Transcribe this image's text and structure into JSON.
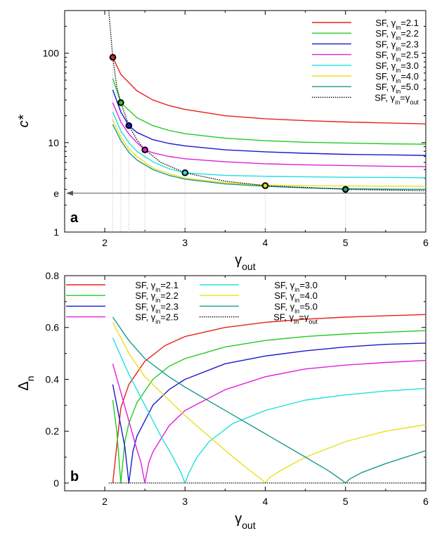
{
  "chart_data": [
    {
      "type": "line",
      "panel_label": "a",
      "xlabel": "γ",
      "xlabel_sub": "out",
      "ylabel": "c*",
      "xlim": [
        1.5,
        6
      ],
      "ylim": [
        1,
        300
      ],
      "y_scale": "log",
      "x_ticks": [
        2,
        3,
        4,
        5,
        6
      ],
      "x_tick_labels": [
        "2",
        "3",
        "4",
        "5",
        "6"
      ],
      "y_ticks": [
        1,
        10,
        100
      ],
      "y_tick_labels": [
        "1",
        "10",
        "100"
      ],
      "reference_line": {
        "label": "e",
        "y": 2.718
      },
      "legend_position": "top-right",
      "series": [
        {
          "name": "SF, γin=2.1",
          "name_base": "SF, γ",
          "name_sub": "in",
          "name_value": "=2.1",
          "color": "#e8201a",
          "x": [
            2.1,
            2.2,
            2.4,
            2.6,
            2.8,
            3.0,
            3.5,
            4.0,
            4.5,
            5.0,
            5.5,
            6.0
          ],
          "y": [
            90,
            58,
            38,
            30,
            26,
            23.5,
            20,
            18.5,
            17.6,
            17,
            16.6,
            16.2
          ]
        },
        {
          "name": "SF, γin=2.2",
          "name_base": "SF, γ",
          "name_sub": "in",
          "name_value": "=2.2",
          "color": "#22cc22",
          "x": [
            2.1,
            2.2,
            2.4,
            2.6,
            2.8,
            3.0,
            3.5,
            4.0,
            4.5,
            5.0,
            5.5,
            6.0
          ],
          "y": [
            52,
            28,
            19,
            15.5,
            13.7,
            12.6,
            11.2,
            10.5,
            10.1,
            9.9,
            9.7,
            9.6
          ]
        },
        {
          "name": "SF, γin=2.3",
          "name_base": "SF, γ",
          "name_sub": "in",
          "name_value": "=2.3",
          "color": "#1a1acc",
          "x": [
            2.1,
            2.2,
            2.3,
            2.4,
            2.6,
            2.8,
            3.0,
            3.5,
            4.0,
            4.5,
            5.0,
            5.5,
            6.0
          ],
          "y": [
            39,
            22,
            15.5,
            13,
            10.8,
            9.8,
            9.2,
            8.3,
            7.9,
            7.6,
            7.4,
            7.3,
            7.2
          ]
        },
        {
          "name": "SF, γin=2.5",
          "name_base": "SF, γ",
          "name_sub": "in",
          "name_value": "=2.5",
          "color": "#e020d8",
          "x": [
            2.1,
            2.2,
            2.3,
            2.4,
            2.5,
            2.6,
            2.8,
            3.0,
            3.5,
            4.0,
            4.5,
            5.0,
            5.5,
            6.0
          ],
          "y": [
            28,
            17,
            12.5,
            10,
            8.3,
            7.7,
            7.0,
            6.6,
            6.1,
            5.8,
            5.65,
            5.55,
            5.45,
            5.4
          ]
        },
        {
          "name": "SF, γin=3.0",
          "name_base": "SF, γ",
          "name_sub": "in",
          "name_value": "=3.0",
          "color": "#22e0e0",
          "x": [
            2.1,
            2.2,
            2.3,
            2.4,
            2.6,
            2.8,
            3.0,
            3.5,
            4.0,
            4.5,
            5.0,
            5.5,
            6.0
          ],
          "y": [
            22,
            13.5,
            10,
            8.0,
            6.1,
            5.1,
            4.6,
            4.3,
            4.2,
            4.15,
            4.1,
            4.08,
            4.05
          ]
        },
        {
          "name": "SF, γin=4.0",
          "name_base": "SF, γ",
          "name_sub": "in",
          "name_value": "=4.0",
          "color": "#e8e020",
          "x": [
            2.1,
            2.2,
            2.3,
            2.4,
            2.6,
            2.8,
            3.0,
            3.5,
            4.0,
            4.5,
            5.0,
            5.5,
            6.0
          ],
          "y": [
            18,
            11.5,
            8.5,
            7.0,
            5.2,
            4.5,
            4.0,
            3.55,
            3.35,
            3.3,
            3.28,
            3.26,
            3.25
          ]
        },
        {
          "name": "SF, γin=5.0",
          "name_base": "SF, γ",
          "name_sub": "in",
          "name_value": "=5.0",
          "color": "#1a9a8a",
          "x": [
            2.1,
            2.2,
            2.3,
            2.4,
            2.6,
            2.8,
            3.0,
            3.5,
            4.0,
            4.5,
            5.0,
            5.5,
            6.0
          ],
          "y": [
            16,
            10.5,
            7.8,
            6.4,
            5.0,
            4.3,
            3.9,
            3.45,
            3.25,
            3.12,
            3.05,
            3.02,
            3.0
          ]
        },
        {
          "name": "SF, γin=γout",
          "name_base": "SF, γ",
          "name_sub": "in",
          "name_value": "=γ",
          "name_sub2": "out",
          "color": "#000000",
          "dashed": true,
          "x": [
            2.05,
            2.1,
            2.15,
            2.2,
            2.3,
            2.4,
            2.5,
            2.7,
            3.0,
            3.5,
            4.0,
            4.5,
            5.0,
            5.5,
            6.0
          ],
          "y": [
            300,
            90,
            42,
            28,
            15.5,
            10.8,
            8.3,
            6.0,
            4.6,
            3.7,
            3.3,
            3.15,
            3.0,
            2.95,
            2.9
          ]
        }
      ],
      "markers": [
        {
          "x": 2.1,
          "y": 90,
          "color": "#e8201a"
        },
        {
          "x": 2.2,
          "y": 28,
          "color": "#22cc22"
        },
        {
          "x": 2.3,
          "y": 15.5,
          "color": "#1a1acc"
        },
        {
          "x": 2.5,
          "y": 8.3,
          "color": "#e020d8"
        },
        {
          "x": 3.0,
          "y": 4.6,
          "color": "#22e0e0"
        },
        {
          "x": 4.0,
          "y": 3.3,
          "color": "#e8e020"
        },
        {
          "x": 5.0,
          "y": 3.0,
          "color": "#1a9a8a"
        }
      ]
    },
    {
      "type": "line",
      "panel_label": "b",
      "xlabel": "γ",
      "xlabel_sub": "out",
      "ylabel": "Δ",
      "ylabel_sub": "n",
      "xlim": [
        1.5,
        6
      ],
      "ylim": [
        -0.03,
        0.8
      ],
      "x_ticks": [
        2,
        3,
        4,
        5,
        6
      ],
      "x_tick_labels": [
        "2",
        "3",
        "4",
        "5",
        "6"
      ],
      "y_ticks": [
        0,
        0.2,
        0.4,
        0.6,
        0.8
      ],
      "y_tick_labels": [
        "0",
        "0.2",
        "0.4",
        "0.6",
        "0.8"
      ],
      "legend_position": "top-left",
      "series": [
        {
          "name": "SF, γin=2.1",
          "name_base": "SF, γ",
          "name_sub": "in",
          "name_value": "=2.1",
          "color": "#e8201a",
          "x": [
            2.1,
            2.2,
            2.3,
            2.5,
            2.75,
            3.0,
            3.5,
            4.0,
            4.5,
            5.0,
            5.5,
            6.0
          ],
          "y": [
            0.0,
            0.29,
            0.38,
            0.47,
            0.53,
            0.565,
            0.6,
            0.62,
            0.632,
            0.64,
            0.645,
            0.65
          ]
        },
        {
          "name": "SF, γin=2.2",
          "name_base": "SF, γ",
          "name_sub": "in",
          "name_value": "=2.2",
          "color": "#22cc22",
          "x": [
            2.1,
            2.15,
            2.2,
            2.25,
            2.3,
            2.4,
            2.6,
            2.8,
            3.0,
            3.5,
            4.0,
            4.5,
            5.0,
            5.5,
            6.0
          ],
          "y": [
            0.32,
            0.2,
            0.0,
            0.16,
            0.23,
            0.31,
            0.4,
            0.45,
            0.48,
            0.525,
            0.55,
            0.565,
            0.575,
            0.582,
            0.588
          ]
        },
        {
          "name": "SF, γin=2.3",
          "name_base": "SF, γ",
          "name_sub": "in",
          "name_value": "=2.3",
          "color": "#1a1acc",
          "x": [
            2.1,
            2.2,
            2.25,
            2.3,
            2.35,
            2.4,
            2.6,
            2.8,
            3.0,
            3.5,
            4.0,
            4.5,
            5.0,
            5.5,
            6.0
          ],
          "y": [
            0.38,
            0.22,
            0.14,
            0.0,
            0.12,
            0.18,
            0.3,
            0.36,
            0.4,
            0.46,
            0.49,
            0.51,
            0.525,
            0.535,
            0.54
          ]
        },
        {
          "name": "SF, γin=2.5",
          "name_base": "SF, γ",
          "name_sub": "in",
          "name_value": "=2.5",
          "color": "#e020d8",
          "x": [
            2.1,
            2.2,
            2.3,
            2.4,
            2.45,
            2.5,
            2.55,
            2.6,
            2.8,
            3.0,
            3.5,
            4.0,
            4.5,
            5.0,
            5.5,
            6.0
          ],
          "y": [
            0.46,
            0.35,
            0.24,
            0.13,
            0.08,
            0.0,
            0.08,
            0.12,
            0.22,
            0.28,
            0.36,
            0.41,
            0.44,
            0.455,
            0.465,
            0.473
          ]
        },
        {
          "name": "SF, γin=3.0",
          "name_base": "SF, γ",
          "name_sub": "in",
          "name_value": "=3.0",
          "color": "#22e0e0",
          "x": [
            2.1,
            2.3,
            2.5,
            2.7,
            2.85,
            2.95,
            3.0,
            3.05,
            3.15,
            3.3,
            3.6,
            4.0,
            4.5,
            5.0,
            5.5,
            6.0
          ],
          "y": [
            0.56,
            0.42,
            0.3,
            0.18,
            0.1,
            0.04,
            0.0,
            0.04,
            0.1,
            0.16,
            0.23,
            0.28,
            0.32,
            0.34,
            0.355,
            0.365
          ]
        },
        {
          "name": "SF, γin=4.0",
          "name_base": "SF, γ",
          "name_sub": "in",
          "name_value": "=4.0",
          "color": "#e8e020",
          "x": [
            2.1,
            2.3,
            2.5,
            2.8,
            3.0,
            3.3,
            3.6,
            3.8,
            3.95,
            4.0,
            4.05,
            4.2,
            4.5,
            5.0,
            5.5,
            6.0
          ],
          "y": [
            0.62,
            0.5,
            0.41,
            0.32,
            0.26,
            0.18,
            0.1,
            0.05,
            0.015,
            0.0,
            0.02,
            0.05,
            0.1,
            0.16,
            0.2,
            0.225
          ]
        },
        {
          "name": "SF, γin=5.0",
          "name_base": "SF, γ",
          "name_sub": "in",
          "name_value": "=5.0",
          "color": "#1a9a8a",
          "x": [
            2.1,
            2.3,
            2.5,
            2.8,
            3.0,
            3.5,
            4.0,
            4.5,
            4.8,
            4.95,
            5.0,
            5.05,
            5.2,
            5.5,
            6.0
          ],
          "y": [
            0.64,
            0.55,
            0.48,
            0.41,
            0.37,
            0.28,
            0.19,
            0.1,
            0.045,
            0.012,
            0.0,
            0.015,
            0.04,
            0.075,
            0.125
          ]
        },
        {
          "name": "SF, γin=γout",
          "name_base": "SF, γ",
          "name_sub": "in",
          "name_value": "=γ",
          "name_sub2": "out",
          "color": "#000000",
          "dashed": true,
          "x": [
            2.05,
            6.0
          ],
          "y": [
            0.0,
            0.0
          ]
        }
      ]
    }
  ]
}
